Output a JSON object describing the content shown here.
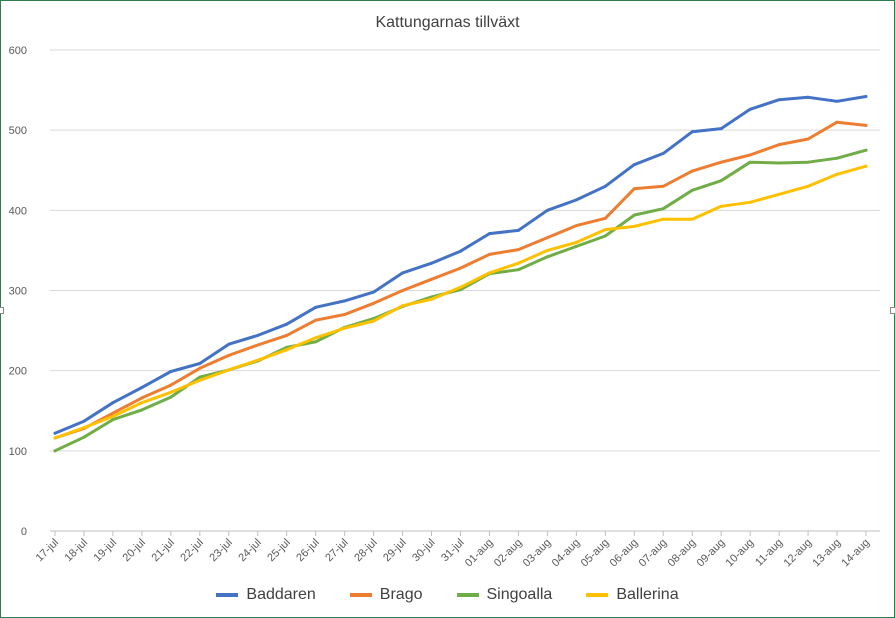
{
  "chart_data": {
    "type": "line",
    "title": "Kattungarnas tillväxt",
    "xlabel": "",
    "ylabel": "",
    "ylim": [
      0,
      600
    ],
    "yticks": [
      0,
      100,
      200,
      300,
      400,
      500,
      600
    ],
    "grid": true,
    "legend_position": "bottom",
    "categories": [
      "17-jul",
      "18-jul",
      "19-jul",
      "20-jul",
      "21-jul",
      "22-jul",
      "23-jul",
      "24-jul",
      "25-jul",
      "26-jul",
      "27-jul",
      "28-jul",
      "29-jul",
      "30-jul",
      "31-jul",
      "01-aug",
      "02-aug",
      "03-aug",
      "04-aug",
      "05-aug",
      "06-aug",
      "07-aug",
      "08-aug",
      "09-aug",
      "10-aug",
      "11-aug",
      "12-aug",
      "13-aug",
      "14-aug"
    ],
    "series": [
      {
        "name": "Baddaren",
        "color": "#4472c4",
        "values": [
          122,
          137,
          160,
          179,
          199,
          209,
          233,
          244,
          258,
          279,
          287,
          298,
          322,
          334,
          349,
          371,
          375,
          400,
          413,
          430,
          457,
          471,
          498,
          502,
          526,
          538,
          541,
          536,
          542
        ]
      },
      {
        "name": "Brago",
        "color": "#ed7d31",
        "values": [
          116,
          128,
          147,
          166,
          182,
          203,
          219,
          232,
          244,
          263,
          270,
          284,
          300,
          314,
          328,
          345,
          351,
          366,
          381,
          390,
          427,
          430,
          449,
          460,
          469,
          482,
          489,
          510,
          506
        ]
      },
      {
        "name": "Singoalla",
        "color": "#70ad47",
        "values": [
          100,
          117,
          139,
          151,
          167,
          192,
          201,
          212,
          229,
          236,
          254,
          265,
          280,
          292,
          301,
          321,
          326,
          342,
          355,
          368,
          394,
          402,
          425,
          437,
          460,
          459,
          460,
          465,
          475
        ]
      },
      {
        "name": "Ballerina",
        "color": "#ffc000",
        "values": [
          116,
          129,
          143,
          160,
          173,
          188,
          201,
          213,
          226,
          241,
          253,
          262,
          281,
          289,
          304,
          322,
          334,
          350,
          360,
          376,
          380,
          389,
          389,
          405,
          410,
          420,
          430,
          445,
          455
        ]
      }
    ]
  }
}
